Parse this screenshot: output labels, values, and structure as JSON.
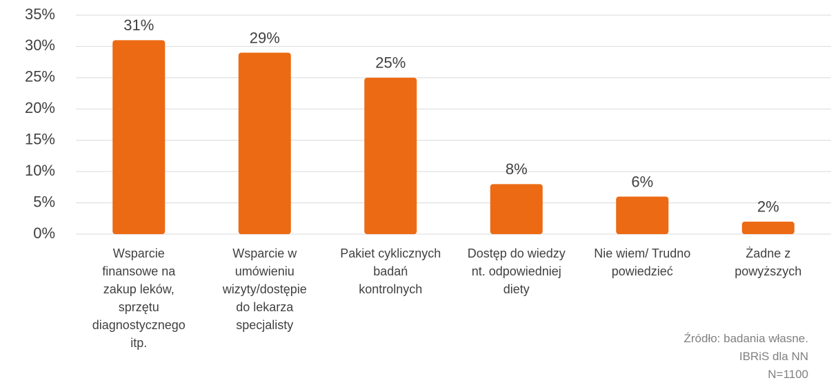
{
  "chart_data": {
    "type": "bar",
    "categories": [
      "Wsparcie\nfinansowe na\nzakup leków,\nsprzętu\ndiagnostycznego\nitp.",
      "Wsparcie w\numówieniu\nwizyty/dostępie\ndo lekarza\nspecjalisty",
      "Pakiet cyklicznych\nbadań\nkontrolnych",
      "Dostęp do wiedzy\nnt. odpowiedniej\ndiety",
      "Nie wiem/ Trudno\npowiedzieć",
      "Żadne z\npowyższych"
    ],
    "values": [
      31,
      29,
      25,
      8,
      6,
      2
    ],
    "value_labels": [
      "31%",
      "29%",
      "25%",
      "8%",
      "6%",
      "2%"
    ],
    "color": "#ec6a13",
    "ylim": [
      0,
      35
    ],
    "yticks": [
      {
        "value": 0,
        "label": "0%"
      },
      {
        "value": 5,
        "label": "5%"
      },
      {
        "value": 10,
        "label": "10%"
      },
      {
        "value": 15,
        "label": "15%"
      },
      {
        "value": 20,
        "label": "20%"
      },
      {
        "value": 25,
        "label": "25%"
      },
      {
        "value": 30,
        "label": "30%"
      },
      {
        "value": 35,
        "label": "35%"
      }
    ],
    "grid": true,
    "source": [
      "Źródło: badania własne.",
      "IBRiS dla NN",
      "N=1100"
    ]
  }
}
